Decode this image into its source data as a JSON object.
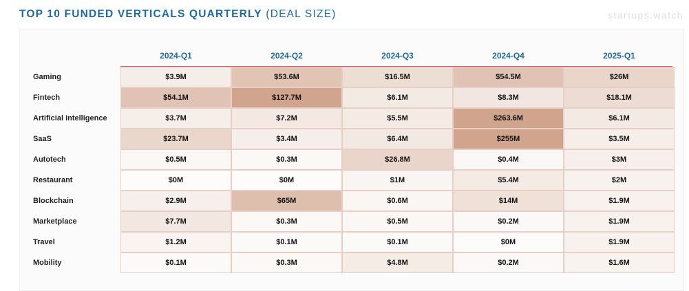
{
  "title_bold": "TOP 10 FUNDED VERTICALS QUARTERLY",
  "title_light": "(DEAL SIZE)",
  "brand": "startups.watch",
  "colors": {
    "title": "#1d6aa5",
    "accent_line": "#d55a6b",
    "heat_low": "#fdfcfb",
    "heat_mid": "#f0e3db",
    "heat_high": "#d1a48d"
  },
  "chart_data": {
    "type": "heatmap",
    "title": "TOP 10 FUNDED VERTICALS QUARTERLY (DEAL SIZE)",
    "columns": [
      "2024-Q1",
      "2024-Q2",
      "2024-Q3",
      "2024-Q4",
      "2025-Q1"
    ],
    "rows": [
      {
        "label": "Gaming",
        "display": [
          "$3.9M",
          "$53.6M",
          "$16.5M",
          "$54.5M",
          "$26M"
        ],
        "values": [
          3.9,
          53.6,
          16.5,
          54.5,
          26
        ]
      },
      {
        "label": "Fintech",
        "display": [
          "$54.1M",
          "$127.7M",
          "$6.1M",
          "$8.3M",
          "$18.1M"
        ],
        "values": [
          54.1,
          127.7,
          6.1,
          8.3,
          18.1
        ]
      },
      {
        "label": "Artificial intelligence",
        "display": [
          "$3.7M",
          "$7.2M",
          "$5.5M",
          "$263.6M",
          "$6.1M"
        ],
        "values": [
          3.7,
          7.2,
          5.5,
          263.6,
          6.1
        ]
      },
      {
        "label": "SaaS",
        "display": [
          "$23.7M",
          "$3.4M",
          "$6.4M",
          "$255M",
          "$3.5M"
        ],
        "values": [
          23.7,
          3.4,
          6.4,
          255,
          3.5
        ]
      },
      {
        "label": "Autotech",
        "display": [
          "$0.5M",
          "$0.3M",
          "$26.8M",
          "$0.4M",
          "$3M"
        ],
        "values": [
          0.5,
          0.3,
          26.8,
          0.4,
          3
        ]
      },
      {
        "label": "Restaurant",
        "display": [
          "$0M",
          "$0M",
          "$1M",
          "$5.4M",
          "$2M"
        ],
        "values": [
          0,
          0,
          1,
          5.4,
          2
        ]
      },
      {
        "label": "Blockchain",
        "display": [
          "$2.9M",
          "$65M",
          "$0.6M",
          "$14M",
          "$1.9M"
        ],
        "values": [
          2.9,
          65,
          0.6,
          14,
          1.9
        ]
      },
      {
        "label": "Marketplace",
        "display": [
          "$7.7M",
          "$0.3M",
          "$0.5M",
          "$0.2M",
          "$1.9M"
        ],
        "values": [
          7.7,
          0.3,
          0.5,
          0.2,
          1.9
        ]
      },
      {
        "label": "Travel",
        "display": [
          "$1.2M",
          "$0.1M",
          "$0.1M",
          "$0M",
          "$1.9M"
        ],
        "values": [
          1.2,
          0.1,
          0.1,
          0,
          1.9
        ]
      },
      {
        "label": "Mobility",
        "display": [
          "$0.1M",
          "$0.3M",
          "$4.8M",
          "$0.2M",
          "$1.6M"
        ],
        "values": [
          0.1,
          0.3,
          4.8,
          0.2,
          1.6
        ]
      }
    ]
  }
}
